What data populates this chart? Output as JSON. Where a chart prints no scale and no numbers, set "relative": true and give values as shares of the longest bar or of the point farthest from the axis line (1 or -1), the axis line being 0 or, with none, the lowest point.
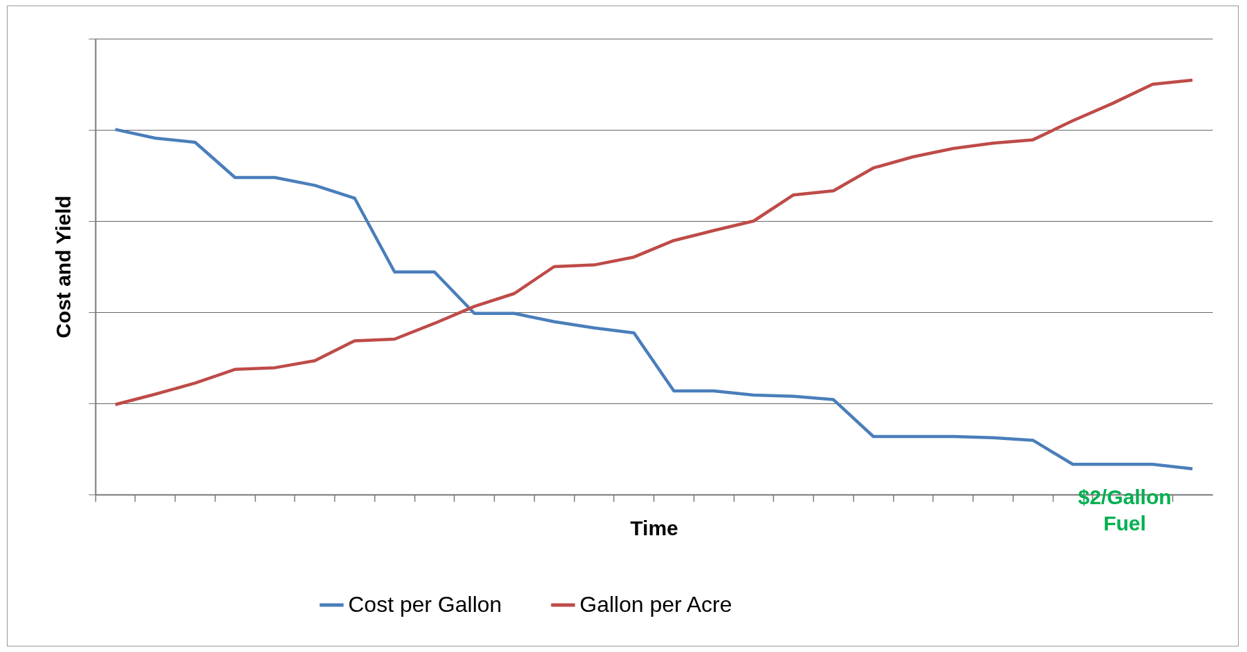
{
  "chart_data": {
    "type": "line",
    "relative": true,
    "xlabel": "Time",
    "ylabel": "Cost and Yield",
    "annotations": [
      "$2/Gallon Fuel"
    ],
    "categories": [
      null,
      null,
      null,
      null,
      null,
      null,
      null,
      null,
      null,
      null,
      null,
      null,
      null,
      null,
      null,
      null,
      null,
      null,
      null,
      null,
      null,
      null,
      null,
      null,
      null,
      null,
      null,
      null
    ],
    "series": [
      {
        "name": "Cost per Gallon",
        "color": "#4a7ebb",
        "values": [
          0.881,
          0.86,
          0.85,
          0.765,
          0.765,
          0.746,
          0.715,
          0.537,
          0.537,
          0.437,
          0.437,
          0.417,
          0.402,
          0.39,
          0.25,
          0.25,
          0.24,
          0.237,
          0.229,
          0.14,
          0.14,
          0.14,
          0.137,
          0.131,
          0.073,
          0.073,
          0.073,
          0.062
        ]
      },
      {
        "name": "Gallon per Acre",
        "color": "#be4b48",
        "values": [
          0.217,
          0.242,
          0.269,
          0.302,
          0.306,
          0.323,
          0.371,
          0.375,
          0.413,
          0.454,
          0.485,
          0.55,
          0.554,
          0.573,
          0.613,
          0.637,
          0.66,
          0.723,
          0.733,
          0.788,
          0.815,
          0.835,
          0.848,
          0.856,
          0.902,
          0.944,
          0.99,
          1
        ]
      }
    ],
    "grid": "y",
    "legend": "bottom"
  }
}
